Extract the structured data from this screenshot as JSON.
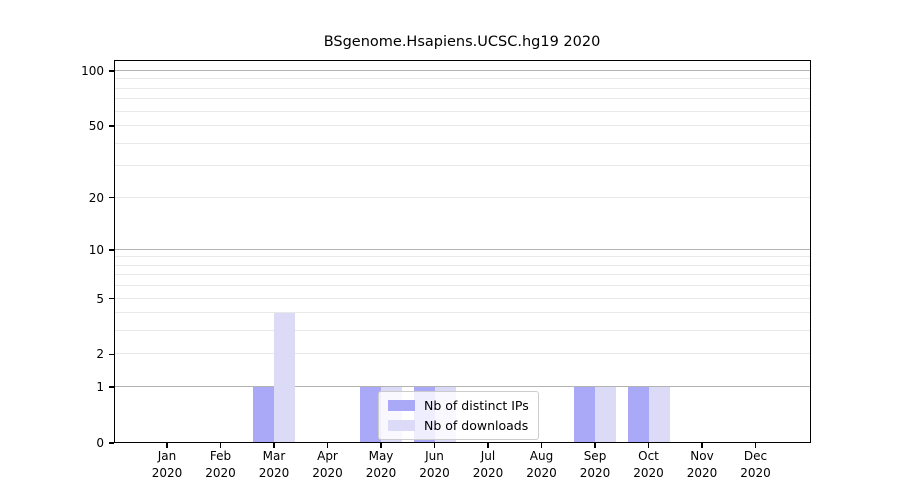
{
  "title": "BSgenome.Hsapiens.UCSC.hg19 2020",
  "legend": {
    "items": [
      {
        "label": "Nb of distinct IPs",
        "color": "#a9a9f7"
      },
      {
        "label": "Nb of downloads",
        "color": "#dbdbf8"
      }
    ]
  },
  "chart_data": {
    "type": "bar",
    "title": "BSgenome.Hsapiens.UCSC.hg19 2020",
    "categories": [
      "Jan 2020",
      "Feb 2020",
      "Mar 2020",
      "Apr 2020",
      "May 2020",
      "Jun 2020",
      "Jul 2020",
      "Aug 2020",
      "Sep 2020",
      "Oct 2020",
      "Nov 2020",
      "Dec 2020"
    ],
    "series": [
      {
        "name": "Nb of distinct IPs",
        "color": "#a9a9f7",
        "values": [
          0,
          0,
          1,
          0,
          1,
          1,
          0,
          0,
          1,
          1,
          0,
          0
        ]
      },
      {
        "name": "Nb of downloads",
        "color": "#dbdbf8",
        "values": [
          0,
          0,
          4,
          0,
          1,
          1,
          0,
          0,
          1,
          1,
          0,
          0
        ]
      }
    ],
    "xlabel": "",
    "ylabel": "",
    "y_scale": "log1p",
    "ylim": [
      0,
      115
    ],
    "y_ticks": [
      0,
      1,
      2,
      5,
      10,
      20,
      50,
      100
    ],
    "y_minor_gridlines": [
      3,
      4,
      6,
      7,
      8,
      9,
      30,
      40,
      60,
      70,
      80,
      90
    ],
    "y_emphasized_gridlines": [
      1,
      10,
      100
    ],
    "grid": true,
    "legend_position": "inside-bottom-center"
  }
}
